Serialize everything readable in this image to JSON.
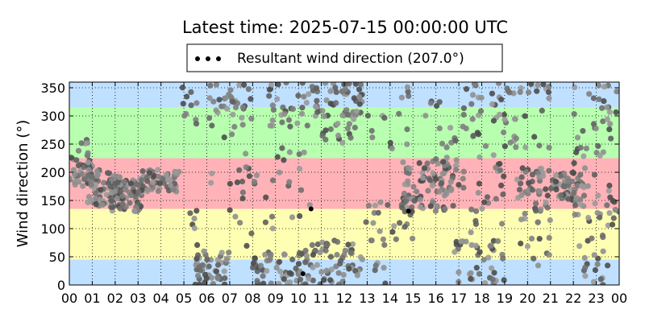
{
  "chart_data": {
    "type": "scatter",
    "title": "Latest time: 2025-07-15 00:00:00 UTC",
    "xlabel": "",
    "ylabel": "Wind direction (°)",
    "x_unit": "hour (UTC)",
    "xlim": [
      0,
      24
    ],
    "ylim": [
      0,
      360
    ],
    "grid": true,
    "x_ticks": [
      "00",
      "01",
      "02",
      "03",
      "04",
      "05",
      "06",
      "07",
      "08",
      "09",
      "10",
      "11",
      "12",
      "13",
      "14",
      "15",
      "16",
      "17",
      "18",
      "19",
      "20",
      "21",
      "22",
      "23",
      "00"
    ],
    "y_ticks": [
      0,
      50,
      100,
      150,
      200,
      250,
      300,
      350
    ],
    "legend": {
      "placement": "top-center",
      "entries": [
        {
          "label": "Resultant wind direction (207.0°)",
          "marker": "dots",
          "color": "#000000"
        }
      ]
    },
    "bands": [
      {
        "y0": 315,
        "y1": 360,
        "color": "#bfe0ff"
      },
      {
        "y0": 225,
        "y1": 315,
        "color": "#b8ffb0"
      },
      {
        "y0": 135,
        "y1": 225,
        "color": "#ffb3b8"
      },
      {
        "y0": 45,
        "y1": 135,
        "color": "#ffffb3"
      },
      {
        "y0": 0,
        "y1": 45,
        "color": "#bfe0ff"
      }
    ],
    "series": [
      {
        "name": "Resultant wind direction (207.0°)",
        "color": "#000000",
        "points": [
          [
            10.55,
            135
          ],
          [
            14.8,
            131
          ],
          [
            10.2,
            20
          ]
        ]
      }
    ],
    "observations": {
      "description": "wind direction samples (grey dots)",
      "colors": [
        "#4d4d4d",
        "#5f5f5f",
        "#707070",
        "#808080",
        "#8f8f8f",
        "#9a9a9a"
      ],
      "clusters": [
        {
          "x": [
            0.0,
            1.0
          ],
          "y": [
            170,
            230
          ],
          "n": 40
        },
        {
          "x": [
            0.4,
            1.0
          ],
          "y": [
            230,
            262
          ],
          "n": 6
        },
        {
          "x": [
            0.8,
            2.2
          ],
          "y": [
            140,
            205
          ],
          "n": 70
        },
        {
          "x": [
            1.8,
            3.2
          ],
          "y": [
            130,
            190
          ],
          "n": 70
        },
        {
          "x": [
            3.0,
            4.8
          ],
          "y": [
            165,
            205
          ],
          "n": 55
        },
        {
          "x": [
            4.9,
            5.6
          ],
          "y": [
            280,
            360
          ],
          "n": 10
        },
        {
          "x": [
            5.0,
            5.8
          ],
          "y": [
            60,
            140
          ],
          "n": 6
        },
        {
          "x": [
            5.5,
            7.0
          ],
          "y": [
            0,
            60
          ],
          "n": 45
        },
        {
          "x": [
            6.0,
            8.0
          ],
          "y": [
            280,
            360
          ],
          "n": 35
        },
        {
          "x": [
            6.0,
            8.0
          ],
          "y": [
            150,
            280
          ],
          "n": 12
        },
        {
          "x": [
            7.0,
            9.0
          ],
          "y": [
            60,
            200
          ],
          "n": 15
        },
        {
          "x": [
            8.0,
            10.5
          ],
          "y": [
            0,
            60
          ],
          "n": 55
        },
        {
          "x": [
            8.5,
            10.5
          ],
          "y": [
            280,
            360
          ],
          "n": 30
        },
        {
          "x": [
            9.0,
            10.5
          ],
          "y": [
            120,
            250
          ],
          "n": 14
        },
        {
          "x": [
            10.3,
            12.8
          ],
          "y": [
            0,
            80
          ],
          "n": 60
        },
        {
          "x": [
            10.5,
            12.8
          ],
          "y": [
            300,
            360
          ],
          "n": 55
        },
        {
          "x": [
            11.0,
            13.5
          ],
          "y": [
            250,
            300
          ],
          "n": 18
        },
        {
          "x": [
            12.5,
            14.0
          ],
          "y": [
            0,
            150
          ],
          "n": 20
        },
        {
          "x": [
            13.0,
            15.0
          ],
          "y": [
            240,
            360
          ],
          "n": 14
        },
        {
          "x": [
            14.0,
            15.0
          ],
          "y": [
            60,
            160
          ],
          "n": 12
        },
        {
          "x": [
            14.5,
            17.0
          ],
          "y": [
            130,
            220
          ],
          "n": 90
        },
        {
          "x": [
            15.5,
            17.0
          ],
          "y": [
            220,
            330
          ],
          "n": 15
        },
        {
          "x": [
            16.8,
            19.0
          ],
          "y": [
            0,
            80
          ],
          "n": 40
        },
        {
          "x": [
            17.0,
            19.5
          ],
          "y": [
            230,
            360
          ],
          "n": 45
        },
        {
          "x": [
            17.0,
            19.0
          ],
          "y": [
            80,
            230
          ],
          "n": 25
        },
        {
          "x": [
            19.5,
            21.0
          ],
          "y": [
            130,
            210
          ],
          "n": 40
        },
        {
          "x": [
            19.5,
            21.0
          ],
          "y": [
            230,
            360
          ],
          "n": 18
        },
        {
          "x": [
            19.5,
            21.0
          ],
          "y": [
            30,
            130
          ],
          "n": 15
        },
        {
          "x": [
            21.0,
            22.5
          ],
          "y": [
            150,
            200
          ],
          "n": 55
        },
        {
          "x": [
            22.0,
            24.0
          ],
          "y": [
            250,
            360
          ],
          "n": 25
        },
        {
          "x": [
            22.0,
            24.0
          ],
          "y": [
            100,
            250
          ],
          "n": 40
        },
        {
          "x": [
            22.2,
            24.0
          ],
          "y": [
            0,
            100
          ],
          "n": 20
        }
      ]
    }
  }
}
